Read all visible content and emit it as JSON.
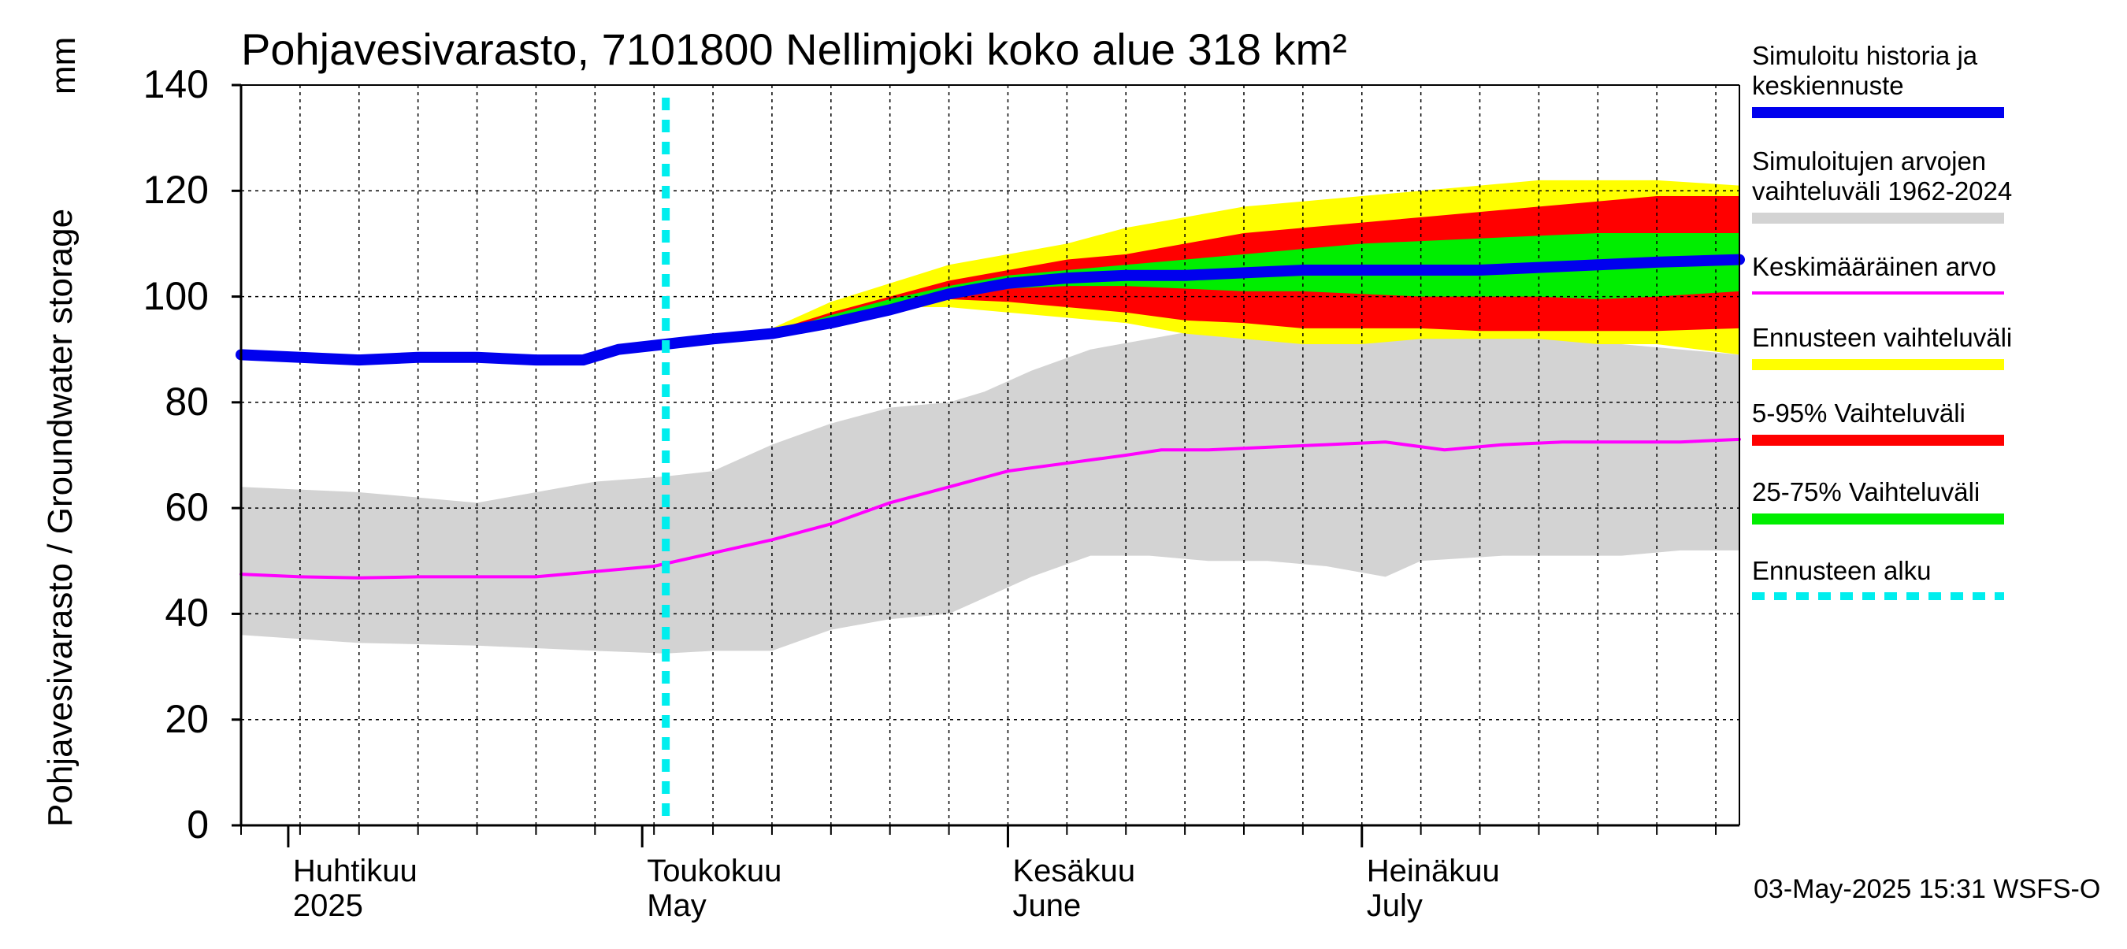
{
  "chart_data": {
    "type": "area",
    "title": "Pohjavesivarasto, 7101800 Nellimjoki koko alue 318 km²",
    "ylabel": "Pohjavesivarasto / Groundwater storage",
    "yunit": "mm",
    "ylim": [
      0,
      140
    ],
    "yticks": [
      0,
      20,
      40,
      60,
      80,
      100,
      120,
      140
    ],
    "x_range_days": [
      0,
      127
    ],
    "x_axis_note": "days since 2025-03-28",
    "forecast_start_day": 36,
    "months": [
      {
        "day": 4,
        "label_fi": "Huhtikuu",
        "label_en": "2025"
      },
      {
        "day": 34,
        "label_fi": "Toukokuu",
        "label_en": "May"
      },
      {
        "day": 65,
        "label_fi": "Kesäkuu",
        "label_en": "June"
      },
      {
        "day": 95,
        "label_fi": "Heinäkuu",
        "label_en": "July"
      }
    ],
    "series": [
      {
        "name": "Simuloitujen arvojen vaihteluväli 1962-2024",
        "kind": "band",
        "color": "#d3d3d3",
        "points": [
          [
            0,
            36,
            64
          ],
          [
            10,
            34.5,
            63
          ],
          [
            20,
            34,
            61
          ],
          [
            30,
            33,
            65
          ],
          [
            36,
            32.5,
            66
          ],
          [
            40,
            33,
            67
          ],
          [
            45,
            33,
            72
          ],
          [
            50,
            37,
            76
          ],
          [
            55,
            39,
            79
          ],
          [
            60,
            40,
            80
          ],
          [
            63,
            43,
            82
          ],
          [
            67,
            47,
            86
          ],
          [
            72,
            51,
            90
          ],
          [
            77,
            51,
            92
          ],
          [
            82,
            50,
            94
          ],
          [
            87,
            50,
            92
          ],
          [
            92,
            49,
            94
          ],
          [
            97,
            47,
            94
          ],
          [
            100,
            50,
            94
          ],
          [
            107,
            51,
            94
          ],
          [
            112,
            51,
            92
          ],
          [
            117,
            51,
            91
          ],
          [
            122,
            52,
            90
          ],
          [
            127,
            52,
            89
          ]
        ]
      },
      {
        "name": "Ennusteen vaihteluväli",
        "kind": "band",
        "color": "#ffff00",
        "points": [
          [
            36,
            90,
            90
          ],
          [
            40,
            91.5,
            91.5
          ],
          [
            45,
            93,
            94
          ],
          [
            50,
            96,
            99
          ],
          [
            55,
            98,
            102.5
          ],
          [
            60,
            98,
            106
          ],
          [
            65,
            97,
            108
          ],
          [
            70,
            96,
            110
          ],
          [
            75,
            95,
            113
          ],
          [
            80,
            93,
            115
          ],
          [
            85,
            92,
            117
          ],
          [
            90,
            91,
            118
          ],
          [
            95,
            91,
            119
          ],
          [
            100,
            92,
            120
          ],
          [
            105,
            92,
            121
          ],
          [
            110,
            92,
            122
          ],
          [
            115,
            91,
            122
          ],
          [
            120,
            91,
            122
          ],
          [
            127,
            89,
            121
          ]
        ]
      },
      {
        "name": "5-95% Vaihteluväli",
        "kind": "band",
        "color": "#ff0000",
        "points": [
          [
            36,
            90,
            90
          ],
          [
            40,
            91.5,
            91.5
          ],
          [
            45,
            93,
            93.5
          ],
          [
            50,
            96,
            97
          ],
          [
            55,
            98,
            100
          ],
          [
            60,
            99.5,
            103
          ],
          [
            65,
            99,
            105
          ],
          [
            70,
            98,
            107
          ],
          [
            75,
            97,
            108
          ],
          [
            80,
            95.5,
            110
          ],
          [
            85,
            95,
            112
          ],
          [
            90,
            94,
            113
          ],
          [
            95,
            94,
            114
          ],
          [
            100,
            94,
            115
          ],
          [
            105,
            93.5,
            116
          ],
          [
            110,
            93.5,
            117
          ],
          [
            115,
            93.5,
            118
          ],
          [
            120,
            93.5,
            119
          ],
          [
            127,
            94,
            119
          ]
        ]
      },
      {
        "name": "25-75% Vaihteluväli",
        "kind": "band",
        "color": "#00ee00",
        "points": [
          [
            36,
            90,
            90
          ],
          [
            40,
            91.5,
            91.5
          ],
          [
            45,
            93,
            93.2
          ],
          [
            50,
            96,
            96.5
          ],
          [
            55,
            98.5,
            99.5
          ],
          [
            60,
            100.5,
            102
          ],
          [
            65,
            101.5,
            104
          ],
          [
            70,
            102,
            105
          ],
          [
            75,
            102,
            106
          ],
          [
            80,
            101.5,
            107
          ],
          [
            85,
            101,
            108
          ],
          [
            90,
            101,
            109
          ],
          [
            95,
            100.5,
            110
          ],
          [
            100,
            100,
            110.5
          ],
          [
            105,
            100,
            111
          ],
          [
            110,
            100,
            111.5
          ],
          [
            115,
            99.5,
            112
          ],
          [
            120,
            100,
            112
          ],
          [
            127,
            101,
            112
          ]
        ]
      },
      {
        "name": "Keskimääräinen arvo",
        "kind": "line",
        "color": "#ff00ff",
        "points": [
          [
            0,
            47.5
          ],
          [
            5,
            47
          ],
          [
            10,
            46.8
          ],
          [
            15,
            47
          ],
          [
            20,
            47
          ],
          [
            25,
            47
          ],
          [
            30,
            48
          ],
          [
            35,
            49
          ],
          [
            40,
            51.5
          ],
          [
            45,
            54
          ],
          [
            50,
            57
          ],
          [
            55,
            61
          ],
          [
            60,
            64
          ],
          [
            65,
            67
          ],
          [
            70,
            68.5
          ],
          [
            75,
            70
          ],
          [
            78,
            71
          ],
          [
            82,
            71
          ],
          [
            87,
            71.5
          ],
          [
            92,
            72
          ],
          [
            97,
            72.5
          ],
          [
            102,
            71
          ],
          [
            107,
            72
          ],
          [
            112,
            72.5
          ],
          [
            117,
            72.5
          ],
          [
            122,
            72.5
          ],
          [
            127,
            73
          ]
        ]
      },
      {
        "name": "Simuloitu historia ja keskiennuste",
        "kind": "line",
        "color": "#0000ee",
        "points": [
          [
            0,
            89
          ],
          [
            5,
            88.5
          ],
          [
            10,
            88
          ],
          [
            15,
            88.5
          ],
          [
            20,
            88.5
          ],
          [
            25,
            88
          ],
          [
            29,
            88
          ],
          [
            32,
            90
          ],
          [
            36,
            91
          ],
          [
            40,
            92
          ],
          [
            45,
            93
          ],
          [
            50,
            95
          ],
          [
            55,
            97.5
          ],
          [
            60,
            100.5
          ],
          [
            65,
            102.5
          ],
          [
            70,
            103.5
          ],
          [
            75,
            104
          ],
          [
            80,
            104
          ],
          [
            85,
            104.5
          ],
          [
            90,
            105
          ],
          [
            95,
            105
          ],
          [
            100,
            105
          ],
          [
            105,
            105
          ],
          [
            110,
            105.5
          ],
          [
            115,
            106
          ],
          [
            120,
            106.5
          ],
          [
            127,
            107
          ]
        ]
      }
    ]
  },
  "legend": [
    {
      "label": "Simuloitu historia ja\nkeskiennuste",
      "color": "#0000ee",
      "style": "solid"
    },
    {
      "label": "Simuloitujen arvojen\nvaihteluväli 1962-2024",
      "color": "#d3d3d3",
      "style": "solid"
    },
    {
      "label": "Keskimääräinen arvo",
      "color": "#ff00ff",
      "style": "thin"
    },
    {
      "label": "Ennusteen vaihteluväli",
      "color": "#ffff00",
      "style": "solid"
    },
    {
      "label": "5-95% Vaihteluväli",
      "color": "#ff0000",
      "style": "solid"
    },
    {
      "label": "25-75% Vaihteluväli",
      "color": "#00ee00",
      "style": "solid"
    },
    {
      "label": "Ennusteen alku",
      "color": "#00eeee",
      "style": "dashed"
    }
  ],
  "footer": "03-May-2025 15:31 WSFS-O"
}
